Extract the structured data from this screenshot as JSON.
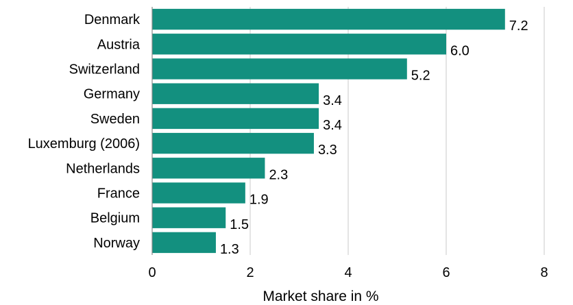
{
  "chart_data": {
    "type": "bar",
    "orientation": "horizontal",
    "categories": [
      "Denmark",
      "Austria",
      "Switzerland",
      "Germany",
      "Sweden",
      "Luxemburg (2006)",
      "Netherlands",
      "France",
      "Belgium",
      "Norway"
    ],
    "values": [
      7.2,
      6.0,
      5.2,
      3.4,
      3.4,
      3.3,
      2.3,
      1.9,
      1.5,
      1.3
    ],
    "value_labels": [
      "7.2",
      "6.0",
      "5.2",
      "3.4",
      "3.4",
      "3.3",
      "2.3",
      "1.9",
      "1.5",
      "1.3"
    ],
    "xlabel": "Market share in %",
    "xlim": [
      0,
      8
    ],
    "xticks": [
      0,
      2,
      4,
      6,
      8
    ],
    "grid": "vertical",
    "legend": "none",
    "bar_color": "#13907f"
  }
}
